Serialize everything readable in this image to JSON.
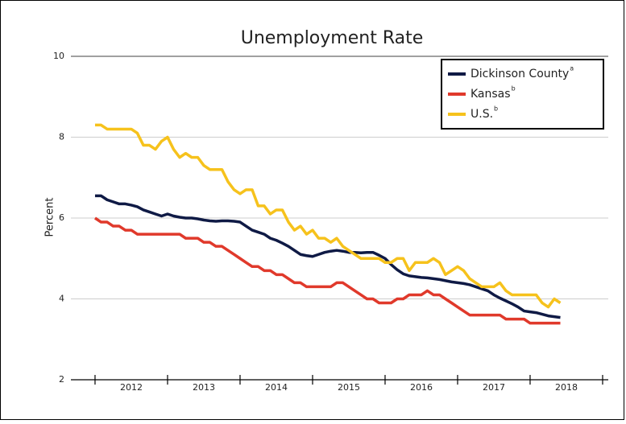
{
  "chart_data": {
    "type": "line",
    "title": "Unemployment Rate",
    "ylabel": "Percent",
    "x": [
      2012,
      2012.083,
      2012.167,
      2012.25,
      2012.333,
      2012.417,
      2012.5,
      2012.583,
      2012.667,
      2012.75,
      2012.833,
      2012.917,
      2013,
      2013.083,
      2013.167,
      2013.25,
      2013.333,
      2013.417,
      2013.5,
      2013.583,
      2013.667,
      2013.75,
      2013.833,
      2013.917,
      2014,
      2014.083,
      2014.167,
      2014.25,
      2014.333,
      2014.417,
      2014.5,
      2014.583,
      2014.667,
      2014.75,
      2014.833,
      2014.917,
      2015,
      2015.083,
      2015.167,
      2015.25,
      2015.333,
      2015.417,
      2015.5,
      2015.583,
      2015.667,
      2015.75,
      2015.833,
      2015.917,
      2016,
      2016.083,
      2016.167,
      2016.25,
      2016.333,
      2016.417,
      2016.5,
      2016.583,
      2016.667,
      2016.75,
      2016.833,
      2016.917,
      2017,
      2017.083,
      2017.167,
      2017.25,
      2017.333,
      2017.417,
      2017.5,
      2017.583,
      2017.667,
      2017.75,
      2017.833,
      2017.917,
      2018,
      2018.083,
      2018.167,
      2018.25,
      2018.333,
      2018.417
    ],
    "series": [
      {
        "name": "Dickinson County",
        "note": "a",
        "color": "#0f1a45",
        "values": [
          6.55,
          6.55,
          6.45,
          6.4,
          6.35,
          6.35,
          6.32,
          6.28,
          6.2,
          6.15,
          6.1,
          6.05,
          6.1,
          6.05,
          6.02,
          6.0,
          6.0,
          5.98,
          5.95,
          5.93,
          5.92,
          5.93,
          5.93,
          5.92,
          5.9,
          5.8,
          5.7,
          5.65,
          5.6,
          5.5,
          5.45,
          5.38,
          5.3,
          5.2,
          5.1,
          5.07,
          5.05,
          5.1,
          5.15,
          5.18,
          5.2,
          5.18,
          5.15,
          5.15,
          5.14,
          5.15,
          5.15,
          5.08,
          5.0,
          4.85,
          4.72,
          4.62,
          4.57,
          4.55,
          4.53,
          4.52,
          4.5,
          4.48,
          4.45,
          4.42,
          4.4,
          4.38,
          4.35,
          4.3,
          4.25,
          4.2,
          4.1,
          4.02,
          3.95,
          3.88,
          3.8,
          3.7,
          3.68,
          3.66,
          3.62,
          3.58,
          3.56,
          3.54
        ]
      },
      {
        "name": "Kansas",
        "note": "b",
        "color": "#e0392b",
        "values": [
          6.0,
          5.9,
          5.9,
          5.8,
          5.8,
          5.7,
          5.7,
          5.6,
          5.6,
          5.6,
          5.6,
          5.6,
          5.6,
          5.6,
          5.6,
          5.5,
          5.5,
          5.5,
          5.4,
          5.4,
          5.3,
          5.3,
          5.2,
          5.1,
          5.0,
          4.9,
          4.8,
          4.8,
          4.7,
          4.7,
          4.6,
          4.6,
          4.5,
          4.4,
          4.4,
          4.3,
          4.3,
          4.3,
          4.3,
          4.3,
          4.4,
          4.4,
          4.3,
          4.2,
          4.1,
          4.0,
          4.0,
          3.9,
          3.9,
          3.9,
          4.0,
          4.0,
          4.1,
          4.1,
          4.1,
          4.2,
          4.1,
          4.1,
          4.0,
          3.9,
          3.8,
          3.7,
          3.6,
          3.6,
          3.6,
          3.6,
          3.6,
          3.6,
          3.5,
          3.5,
          3.5,
          3.5,
          3.4,
          3.4,
          3.4,
          3.4,
          3.4,
          3.4
        ]
      },
      {
        "name": "U.S.",
        "note": "b",
        "color": "#f6c21c",
        "values": [
          8.3,
          8.3,
          8.2,
          8.2,
          8.2,
          8.2,
          8.2,
          8.1,
          7.8,
          7.8,
          7.7,
          7.9,
          8.0,
          7.7,
          7.5,
          7.6,
          7.5,
          7.5,
          7.3,
          7.2,
          7.2,
          7.2,
          6.9,
          6.7,
          6.6,
          6.7,
          6.7,
          6.3,
          6.3,
          6.1,
          6.2,
          6.2,
          5.9,
          5.7,
          5.8,
          5.6,
          5.7,
          5.5,
          5.5,
          5.4,
          5.5,
          5.3,
          5.2,
          5.1,
          5.0,
          5.0,
          5.0,
          5.0,
          4.9,
          4.9,
          5.0,
          5.0,
          4.7,
          4.9,
          4.9,
          4.9,
          5.0,
          4.9,
          4.6,
          4.7,
          4.8,
          4.7,
          4.5,
          4.4,
          4.3,
          4.3,
          4.3,
          4.4,
          4.2,
          4.1,
          4.1,
          4.1,
          4.1,
          4.1,
          3.9,
          3.8,
          4.0,
          3.9
        ]
      }
    ],
    "xlim": [
      2011.667,
      2019.078
    ],
    "xticks": [
      {
        "value": 2012.5,
        "label": "2012"
      },
      {
        "value": 2013.5,
        "label": "2013"
      },
      {
        "value": 2014.5,
        "label": "2014"
      },
      {
        "value": 2015.5,
        "label": "2015"
      },
      {
        "value": 2016.5,
        "label": "2016"
      },
      {
        "value": 2017.5,
        "label": "2017"
      },
      {
        "value": 2018.5,
        "label": "2018"
      }
    ],
    "x_boundaries": [
      2012,
      2013,
      2014,
      2015,
      2016,
      2017,
      2018,
      2019
    ],
    "ylim": [
      2,
      10
    ],
    "yticks": [
      2,
      4,
      6,
      8,
      10
    ],
    "grid": true,
    "legend": "top-right"
  }
}
